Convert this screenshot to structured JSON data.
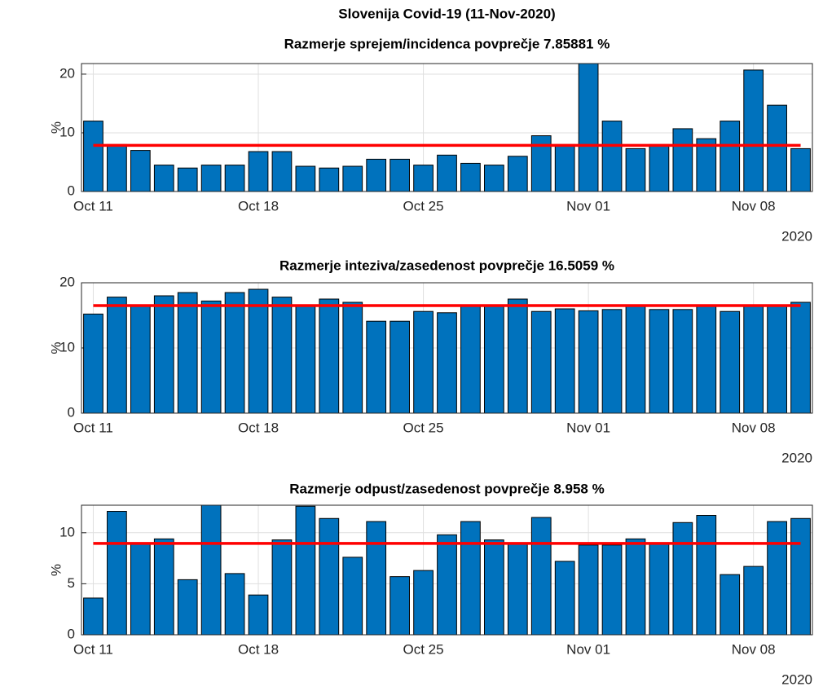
{
  "chart_data": [
    {
      "type": "bar",
      "title": "Slovenija Covid-19 (11-Nov-2020)",
      "subtitle": "Razmerje sprejem/incidenca povprečje 7.85881 %",
      "ylabel": "%",
      "categories": [
        "Oct 11",
        null,
        null,
        null,
        null,
        null,
        null,
        "Oct 18",
        null,
        null,
        null,
        null,
        null,
        null,
        "Oct 25",
        null,
        null,
        null,
        null,
        null,
        null,
        "Nov 01",
        null,
        null,
        null,
        null,
        null,
        null,
        "Nov 08",
        null,
        null
      ],
      "x_year": "2020",
      "values": [
        12,
        8,
        7,
        4.5,
        4,
        4.5,
        4.5,
        6.8,
        6.8,
        4.3,
        4,
        4.3,
        5.5,
        5.5,
        4.5,
        6.2,
        4.8,
        4.5,
        6,
        9.5,
        8,
        21.8,
        12,
        7.3,
        8,
        10.7,
        9,
        12,
        20.7,
        14.7,
        7.3
      ],
      "color": "#0072bd",
      "mean": 7.85881,
      "mean_color": "#ff0000",
      "ylim": [
        0,
        21.8
      ],
      "yticks": [
        0,
        10,
        20
      ],
      "grid": true
    },
    {
      "type": "bar",
      "title": "Razmerje inteziva/zasedenost povprečje 16.5059 %",
      "ylabel": "%",
      "categories": [
        "Oct 11",
        null,
        null,
        null,
        null,
        null,
        null,
        "Oct 18",
        null,
        null,
        null,
        null,
        null,
        null,
        "Oct 25",
        null,
        null,
        null,
        null,
        null,
        null,
        "Nov 01",
        null,
        null,
        null,
        null,
        null,
        null,
        "Nov 08",
        null,
        null
      ],
      "x_year": "2020",
      "values": [
        15.2,
        17.8,
        16.5,
        18,
        18.5,
        17.2,
        18.5,
        19,
        17.8,
        16.5,
        17.5,
        17,
        14.1,
        14.1,
        15.6,
        15.4,
        16.5,
        16.5,
        17.5,
        15.6,
        16,
        15.7,
        15.9,
        16.5,
        15.9,
        15.9,
        16.5,
        15.6,
        16.5,
        16.5,
        17
      ],
      "color": "#0072bd",
      "mean": 16.5059,
      "mean_color": "#ff0000",
      "ylim": [
        0,
        20
      ],
      "yticks": [
        0,
        10,
        20
      ],
      "grid": true
    },
    {
      "type": "bar",
      "title": "Razmerje odpust/zasedenost povprečje 8.958 %",
      "ylabel": "%",
      "categories": [
        "Oct 11",
        null,
        null,
        null,
        null,
        null,
        null,
        "Oct 18",
        null,
        null,
        null,
        null,
        null,
        null,
        "Oct 25",
        null,
        null,
        null,
        null,
        null,
        null,
        "Nov 01",
        null,
        null,
        null,
        null,
        null,
        null,
        "Nov 08",
        null,
        null
      ],
      "x_year": "2020",
      "values": [
        3.6,
        12.1,
        9,
        9.4,
        5.4,
        12.7,
        6,
        3.9,
        9.3,
        12.6,
        11.4,
        7.6,
        11.1,
        5.7,
        6.3,
        9.8,
        11.1,
        9.3,
        9,
        11.5,
        7.2,
        8.8,
        8.8,
        9.4,
        9,
        11,
        11.7,
        5.9,
        6.7,
        11.1,
        11.4
      ],
      "color": "#0072bd",
      "mean": 8.958,
      "mean_color": "#ff0000",
      "ylim": [
        0,
        12.7
      ],
      "yticks": [
        0,
        5,
        10
      ],
      "grid": true
    }
  ]
}
